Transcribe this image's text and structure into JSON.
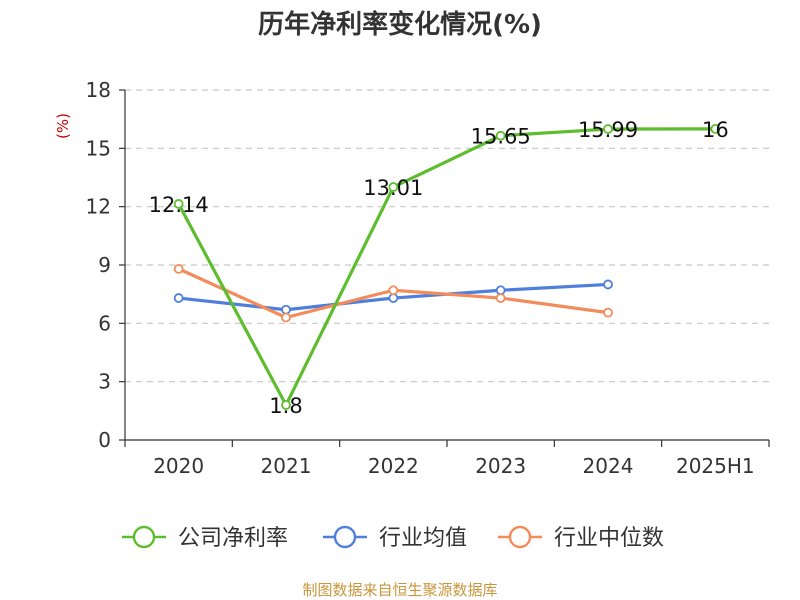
{
  "chart_data": {
    "type": "line",
    "title": "历年净利率变化情况(%)",
    "ylabel": "(%)",
    "xlabel": "",
    "categories": [
      "2020",
      "2021",
      "2022",
      "2023",
      "2024",
      "2025H1"
    ],
    "ylim": [
      0,
      18
    ],
    "yticks": [
      0,
      3,
      6,
      9,
      12,
      15,
      18
    ],
    "grid": true,
    "legend_position": "bottom",
    "series": [
      {
        "name": "公司净利率",
        "color": "#5dbd2e",
        "values": [
          12.14,
          1.8,
          13.01,
          15.65,
          15.99,
          16
        ],
        "labels": [
          "12.14",
          "1.8",
          "13.01",
          "15.65",
          "15.99",
          "16"
        ]
      },
      {
        "name": "行业均值",
        "color": "#4f7fdc",
        "values": [
          7.3,
          6.7,
          7.3,
          7.7,
          8.0,
          null
        ]
      },
      {
        "name": "行业中位数",
        "color": "#f28c5a",
        "values": [
          8.8,
          6.3,
          7.7,
          7.3,
          6.55,
          null
        ]
      }
    ]
  },
  "source": "制图数据来自恒生聚源数据库",
  "colors": {
    "unit": "#cc0000",
    "source": "#c8963c",
    "axis": "#333333",
    "grid": "#c8c8c8"
  }
}
